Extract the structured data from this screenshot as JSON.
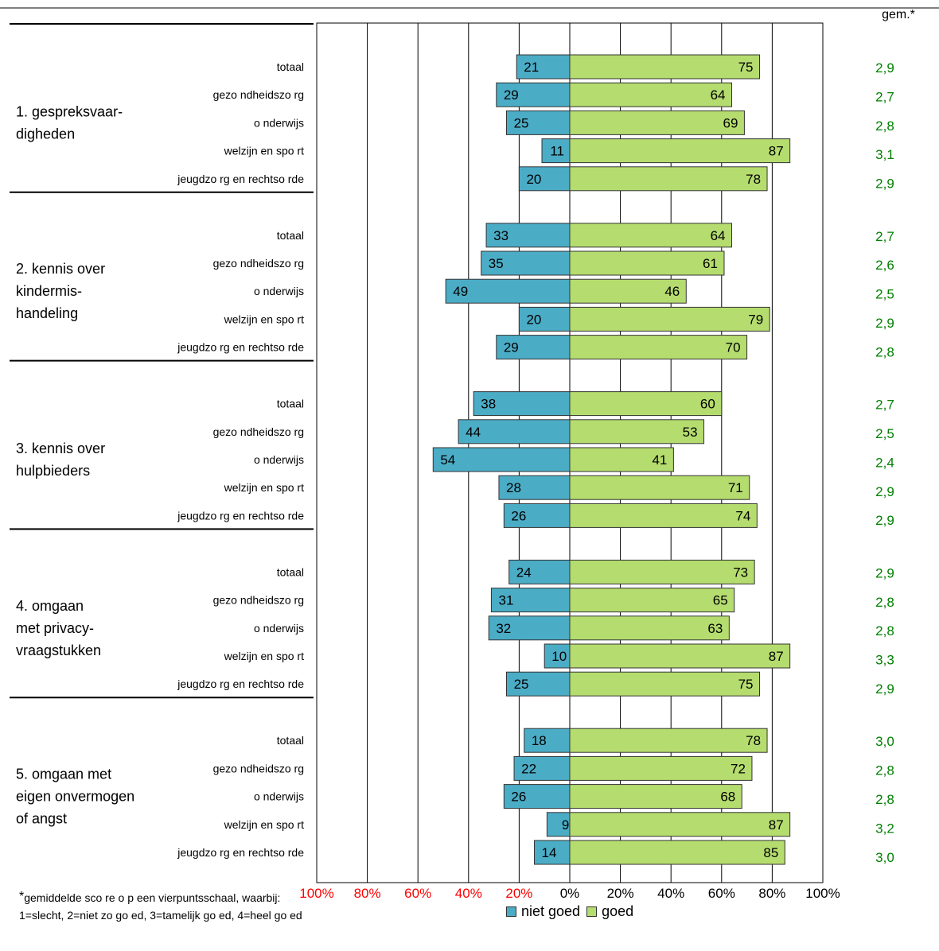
{
  "chart_data": {
    "type": "bar",
    "orientation": "horizontal-diverging",
    "avg_header": "gem.*",
    "x_tick_labels": [
      "100%",
      "80%",
      "60%",
      "40%",
      "20%",
      "0%",
      "20%",
      "40%",
      "60%",
      "80%",
      "100%"
    ],
    "xlim": [
      -100,
      100
    ],
    "grid": true,
    "series": [
      {
        "name": "niet goed",
        "color": "#4bacc6"
      },
      {
        "name": "goed",
        "color": "#b5dc6e"
      }
    ],
    "colors": {
      "negative_ticks": "#ff0000",
      "positive_ticks": "#000000",
      "average": "#008000"
    },
    "groups": [
      {
        "label": [
          "1. gespreksvaar-",
          "digheden"
        ],
        "rows": [
          {
            "category": "totaal",
            "niet_goed": 21,
            "goed": 75,
            "gem": "2,9"
          },
          {
            "category": "gezo ndheidszo rg",
            "niet_goed": 29,
            "goed": 64,
            "gem": "2,7"
          },
          {
            "category": "o nderwijs",
            "niet_goed": 25,
            "goed": 69,
            "gem": "2,8"
          },
          {
            "category": "welzijn en spo rt",
            "niet_goed": 11,
            "goed": 87,
            "gem": "3,1"
          },
          {
            "category": "jeugdzo rg en rechtso rde",
            "niet_goed": 20,
            "goed": 78,
            "gem": "2,9"
          }
        ]
      },
      {
        "label": [
          "2. kennis over",
          "kindermis-",
          "handeling"
        ],
        "rows": [
          {
            "category": "totaal",
            "niet_goed": 33,
            "goed": 64,
            "gem": "2,7"
          },
          {
            "category": "gezo ndheidszo rg",
            "niet_goed": 35,
            "goed": 61,
            "gem": "2,6"
          },
          {
            "category": "o nderwijs",
            "niet_goed": 49,
            "goed": 46,
            "gem": "2,5"
          },
          {
            "category": "welzijn en spo rt",
            "niet_goed": 20,
            "goed": 79,
            "gem": "2,9"
          },
          {
            "category": "jeugdzo rg en rechtso rde",
            "niet_goed": 29,
            "goed": 70,
            "gem": "2,8"
          }
        ]
      },
      {
        "label": [
          "3. kennis over",
          "hulpbieders"
        ],
        "rows": [
          {
            "category": "totaal",
            "niet_goed": 38,
            "goed": 60,
            "gem": "2,7"
          },
          {
            "category": "gezo ndheidszo rg",
            "niet_goed": 44,
            "goed": 53,
            "gem": "2,5"
          },
          {
            "category": "o nderwijs",
            "niet_goed": 54,
            "goed": 41,
            "gem": "2,4"
          },
          {
            "category": "welzijn en spo rt",
            "niet_goed": 28,
            "goed": 71,
            "gem": "2,9"
          },
          {
            "category": "jeugdzo rg en rechtso rde",
            "niet_goed": 26,
            "goed": 74,
            "gem": "2,9"
          }
        ]
      },
      {
        "label": [
          "4. omgaan",
          "met privacy-",
          "vraagstukken"
        ],
        "rows": [
          {
            "category": "totaal",
            "niet_goed": 24,
            "goed": 73,
            "gem": "2,9"
          },
          {
            "category": "gezo ndheidszo rg",
            "niet_goed": 31,
            "goed": 65,
            "gem": "2,8"
          },
          {
            "category": "o nderwijs",
            "niet_goed": 32,
            "goed": 63,
            "gem": "2,8"
          },
          {
            "category": "welzijn en spo rt",
            "niet_goed": 10,
            "goed": 87,
            "gem": "3,3"
          },
          {
            "category": "jeugdzo rg en rechtso rde",
            "niet_goed": 25,
            "goed": 75,
            "gem": "2,9"
          }
        ]
      },
      {
        "label": [
          "5. omgaan met",
          "eigen onvermogen",
          "of angst"
        ],
        "rows": [
          {
            "category": "totaal",
            "niet_goed": 18,
            "goed": 78,
            "gem": "3,0"
          },
          {
            "category": "gezo ndheidszo rg",
            "niet_goed": 22,
            "goed": 72,
            "gem": "2,8"
          },
          {
            "category": "o nderwijs",
            "niet_goed": 26,
            "goed": 68,
            "gem": "2,8"
          },
          {
            "category": "welzijn en spo rt",
            "niet_goed": 9,
            "goed": 87,
            "gem": "3,2"
          },
          {
            "category": "jeugdzo rg en rechtso rde",
            "niet_goed": 14,
            "goed": 85,
            "gem": "3,0"
          }
        ]
      }
    ]
  },
  "footnote": {
    "star": "*",
    "line1": "gemiddelde sco re o p een vierpuntsschaal, waarbij:",
    "line2": "1=slecht, 2=niet zo go ed, 3=tamelijk go ed, 4=heel go ed"
  },
  "legend": {
    "items": [
      {
        "label": "niet goed",
        "color": "#4bacc6"
      },
      {
        "label": "goed",
        "color": "#b5dc6e"
      }
    ]
  }
}
